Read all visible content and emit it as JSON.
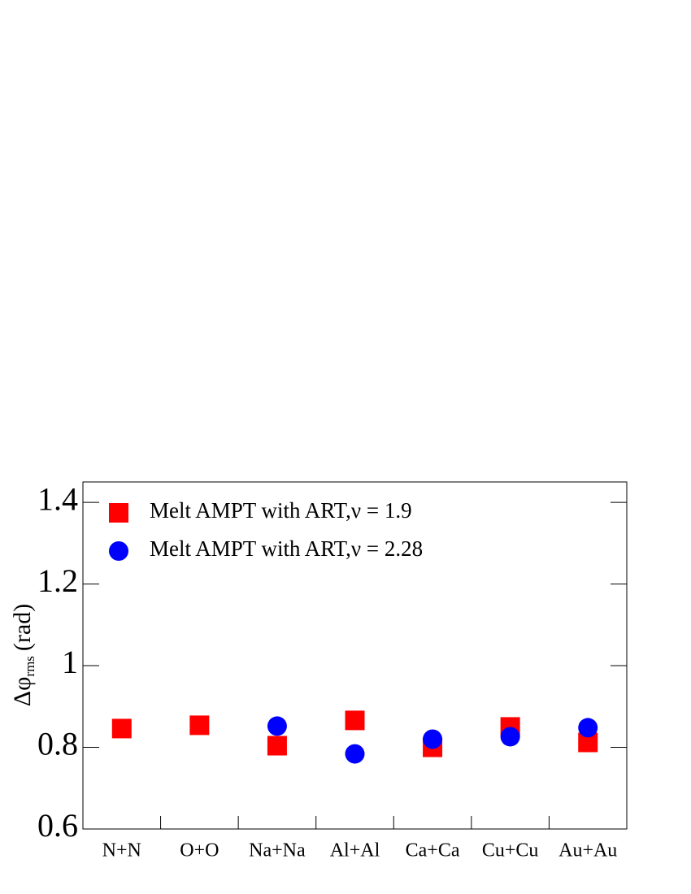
{
  "chart_data": {
    "type": "scatter",
    "categories": [
      "N+N",
      "O+O",
      "Na+Na",
      "Al+Al",
      "Ca+Ca",
      "Cu+Cu",
      "Au+Au"
    ],
    "ylabel": {
      "symbol": "Δφ",
      "subscript": "rms",
      "unit": "(rad)"
    },
    "series": [
      {
        "name": "Melt AMPT with ART,ν = 1.9",
        "color": "#ff0000",
        "marker": "square",
        "values": [
          0.846,
          0.854,
          0.804,
          0.866,
          0.8,
          0.85,
          0.812
        ]
      },
      {
        "name": "Melt AMPT with ART,ν = 2.28",
        "color": "#0000ff",
        "marker": "circle",
        "values": [
          null,
          null,
          0.852,
          0.784,
          0.82,
          0.826,
          0.848
        ]
      }
    ],
    "ylim": [
      0.6,
      1.45
    ],
    "yticks": [
      0.6,
      0.8,
      1,
      1.2,
      1.4
    ],
    "legend": "top-left"
  }
}
